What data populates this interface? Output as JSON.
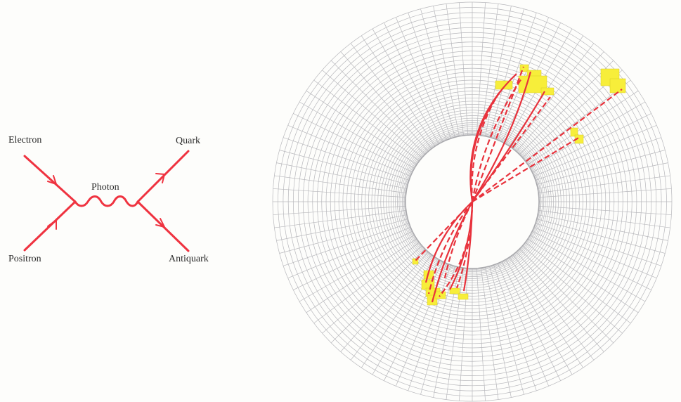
{
  "feynman_diagram": {
    "labels": {
      "electron": "Electron",
      "positron": "Positron",
      "photon": "Photon",
      "quark": "Quark",
      "antiquark": "Antiquark"
    },
    "line_color": "#ef3340"
  },
  "detector_display": {
    "grid_color": "#b8b8bc",
    "track_color": "#e8323c",
    "hit_color": "#f7ee3a"
  }
}
